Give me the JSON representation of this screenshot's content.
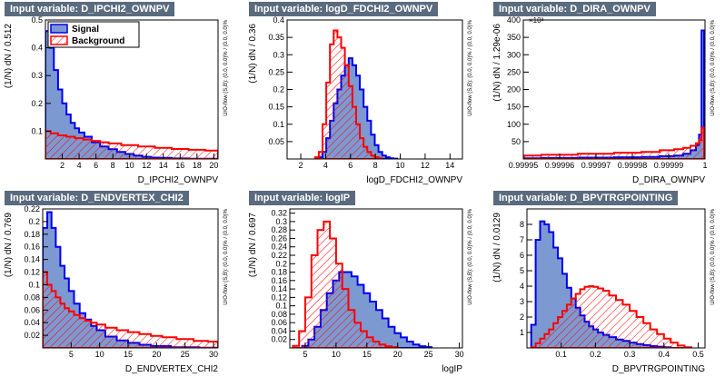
{
  "colors": {
    "signal_fill": "#7d99d1",
    "signal_line": "#0000ee",
    "background_line": "#ff0000",
    "title_bg": "#5b6b7f"
  },
  "legend": {
    "signal": "Signal",
    "background": "Background"
  },
  "overflow_note": "U/O-flow (S,B): (0.0, 0.0)% / (0.0, 0.0)%",
  "chart_data": [
    {
      "type": "histogram",
      "title": "Input variable: D_IPCHI2_OWNPV",
      "xlabel": "D_IPCHI2_OWNPV",
      "ylabel": "(1/N) dN / 0.512",
      "xlim": [
        0,
        20.5
      ],
      "ylim": [
        0,
        0.5
      ],
      "xticks": [
        2,
        4,
        6,
        8,
        10,
        12,
        14,
        16,
        18,
        20
      ],
      "yticks": [
        0.1,
        0.2,
        0.3,
        0.4,
        0.5
      ],
      "ytick_labels": [
        "0.1",
        "0.2",
        "0.3",
        "0.4",
        "0.5"
      ],
      "series": [
        {
          "name": "Signal",
          "x": [
            0.25,
            0.75,
            1.25,
            1.75,
            2.25,
            2.75,
            3.25,
            3.75,
            4.25,
            5,
            6,
            7,
            8,
            9,
            10,
            11,
            12,
            13,
            14,
            16,
            18,
            20
          ],
          "values": [
            0.46,
            0.4,
            0.32,
            0.25,
            0.2,
            0.16,
            0.13,
            0.11,
            0.095,
            0.08,
            0.06,
            0.045,
            0.035,
            0.025,
            0.018,
            0.012,
            0.008,
            0.005,
            0.004,
            0.002,
            0.001,
            0.0005
          ]
        },
        {
          "name": "Background",
          "x": [
            0.25,
            1,
            2,
            3,
            4,
            5,
            6,
            7,
            8,
            10,
            12,
            14,
            16,
            18,
            20
          ],
          "values": [
            0.1,
            0.092,
            0.085,
            0.08,
            0.075,
            0.07,
            0.065,
            0.06,
            0.056,
            0.05,
            0.045,
            0.04,
            0.036,
            0.033,
            0.03
          ]
        }
      ]
    },
    {
      "type": "histogram",
      "title": "Input variable: logD_FDCHI2_OWNPV",
      "xlabel": "logD_FDCHI2_OWNPV",
      "ylabel": "(1/N) dN / 0.36",
      "xlim": [
        0.9,
        15
      ],
      "ylim": [
        0,
        0.4
      ],
      "xticks": [
        2,
        4,
        6,
        8,
        10,
        12,
        14
      ],
      "yticks": [
        0.05,
        0.1,
        0.15,
        0.2,
        0.25,
        0.3,
        0.35,
        0.4
      ],
      "ytick_labels": [
        "0.05",
        "0.1",
        "0.15",
        "0.2",
        "0.25",
        "0.3",
        "0.35",
        "0.4"
      ],
      "series": [
        {
          "name": "Signal",
          "x": [
            3.6,
            3.9,
            4.2,
            4.5,
            4.8,
            5.1,
            5.4,
            5.7,
            6,
            6.3,
            6.6,
            6.9,
            7.2,
            7.5,
            7.8,
            8.1,
            8.4,
            8.7,
            9,
            9.3,
            9.6
          ],
          "values": [
            0.005,
            0.02,
            0.06,
            0.11,
            0.16,
            0.2,
            0.24,
            0.27,
            0.29,
            0.27,
            0.24,
            0.2,
            0.15,
            0.11,
            0.07,
            0.04,
            0.02,
            0.01,
            0.005,
            0.002,
            0.001
          ]
        },
        {
          "name": "Background",
          "x": [
            3.3,
            3.6,
            3.9,
            4.2,
            4.5,
            4.8,
            5.1,
            5.4,
            5.7,
            6,
            6.3,
            6.6,
            6.9,
            7.2,
            7.5,
            7.8,
            8.1,
            8.4
          ],
          "values": [
            0.005,
            0.02,
            0.1,
            0.22,
            0.33,
            0.37,
            0.35,
            0.32,
            0.27,
            0.21,
            0.15,
            0.1,
            0.06,
            0.035,
            0.02,
            0.01,
            0.005,
            0.002
          ]
        }
      ]
    },
    {
      "type": "histogram",
      "title": "Input variable: D_DIRA_OWNPV",
      "xlabel": "D_DIRA_OWNPV",
      "ylabel": "(1/N) dN / 1.29e-06",
      "y_exponent": "×10³",
      "xlim": [
        0.99995,
        1.0
      ],
      "ylim": [
        0,
        400
      ],
      "xticks": [
        0.99995,
        0.99996,
        0.99997,
        0.99998,
        0.99999,
        1
      ],
      "xtick_labels": [
        "0.99995",
        "0.99996",
        "0.99997",
        "0.99998",
        "0.99999",
        "1"
      ],
      "yticks": [
        50,
        100,
        150,
        200,
        250,
        300,
        350,
        400
      ],
      "ytick_labels": [
        "50",
        "100",
        "150",
        "200",
        "250",
        "300",
        "350",
        "400"
      ],
      "series": [
        {
          "name": "Signal",
          "x": [
            0.99995,
            0.99996,
            0.99997,
            0.99998,
            0.999985,
            0.99999,
            0.999993,
            0.999995,
            0.999997,
            0.999998,
            0.9999987,
            0.9999994
          ],
          "values": [
            2,
            3,
            4,
            5,
            6,
            8,
            10,
            15,
            25,
            40,
            70,
            370
          ]
        },
        {
          "name": "Background",
          "x": [
            0.99995,
            0.99996,
            0.99997,
            0.99998,
            0.999985,
            0.99999,
            0.999993,
            0.999995,
            0.999997,
            0.999998,
            0.9999987,
            0.9999994
          ],
          "values": [
            10,
            12,
            15,
            18,
            20,
            25,
            28,
            32,
            38,
            45,
            55,
            90
          ]
        }
      ]
    },
    {
      "type": "histogram",
      "title": "Input variable: D_ENDVERTEX_CHI2",
      "xlabel": "D_ENDVERTEX_CHI2",
      "ylabel": "(1/N) dN / 0.769",
      "xlim": [
        0,
        30.8
      ],
      "ylim": [
        0,
        0.22
      ],
      "xticks": [
        5,
        10,
        15,
        20,
        25,
        30
      ],
      "yticks": [
        0.02,
        0.04,
        0.06,
        0.08,
        0.1,
        0.12,
        0.14,
        0.16,
        0.18,
        0.2,
        0.22
      ],
      "ytick_labels": [
        "0.02",
        "0.04",
        "0.06",
        "0.08",
        "0.1",
        "0.12",
        "0.14",
        "0.16",
        "0.18",
        "0.2",
        "0.22"
      ],
      "series": [
        {
          "name": "Signal",
          "x": [
            0.4,
            1.2,
            1.9,
            2.7,
            3.5,
            4.2,
            5,
            6,
            7,
            8,
            9,
            10,
            12,
            14,
            16,
            18,
            20,
            25,
            30
          ],
          "values": [
            0.19,
            0.215,
            0.19,
            0.16,
            0.13,
            0.11,
            0.09,
            0.07,
            0.055,
            0.045,
            0.035,
            0.028,
            0.018,
            0.012,
            0.008,
            0.005,
            0.003,
            0.001,
            0.0005
          ]
        },
        {
          "name": "Background",
          "x": [
            0.4,
            1.2,
            1.9,
            2.7,
            3.5,
            4.2,
            5,
            6,
            7,
            8,
            9,
            10,
            12,
            14,
            16,
            18,
            20,
            22,
            25,
            28,
            30
          ],
          "values": [
            0.12,
            0.1,
            0.09,
            0.08,
            0.07,
            0.063,
            0.058,
            0.052,
            0.047,
            0.043,
            0.04,
            0.037,
            0.032,
            0.028,
            0.025,
            0.022,
            0.019,
            0.017,
            0.014,
            0.011,
            0.01
          ]
        }
      ]
    },
    {
      "type": "histogram",
      "title": "Input variable: logIP",
      "xlabel": "logIP",
      "ylabel": "(1/N) dN / 0.697",
      "xlim": [
        2.5,
        30.5
      ],
      "ylim": [
        0,
        0.33
      ],
      "xticks": [
        5,
        10,
        15,
        20,
        25,
        30
      ],
      "yticks": [
        0.02,
        0.04,
        0.06,
        0.08,
        0.1,
        0.12,
        0.14,
        0.16,
        0.18,
        0.2,
        0.22,
        0.24,
        0.26,
        0.28,
        0.3,
        0.32
      ],
      "ytick_labels": [
        "0.02",
        "0.04",
        "0.06",
        "0.08",
        "0.1",
        "0.12",
        "0.14",
        "0.16",
        "0.18",
        "0.2",
        "0.22",
        "0.24",
        "0.26",
        "0.28",
        "0.3",
        "0.32"
      ],
      "series": [
        {
          "name": "Signal",
          "x": [
            5,
            6,
            7,
            8,
            9,
            10,
            11,
            12,
            13,
            14,
            15,
            16,
            17,
            18,
            19,
            20,
            21,
            22,
            23,
            24,
            25
          ],
          "values": [
            0.005,
            0.02,
            0.05,
            0.09,
            0.13,
            0.16,
            0.18,
            0.18,
            0.17,
            0.15,
            0.13,
            0.11,
            0.09,
            0.07,
            0.05,
            0.035,
            0.025,
            0.015,
            0.008,
            0.004,
            0.002
          ]
        },
        {
          "name": "Background",
          "x": [
            3.5,
            4.5,
            5.5,
            6.5,
            7.5,
            8.5,
            9.5,
            10.5,
            11.5,
            12.5,
            13.5,
            14.5,
            15.5,
            16.5,
            17.5,
            18.5,
            19.5
          ],
          "values": [
            0.005,
            0.04,
            0.12,
            0.22,
            0.28,
            0.3,
            0.26,
            0.2,
            0.14,
            0.09,
            0.06,
            0.04,
            0.025,
            0.015,
            0.008,
            0.004,
            0.002
          ]
        }
      ]
    },
    {
      "type": "histogram",
      "title": "Input variable: D_BPVTRGPOINTING",
      "xlabel": "D_BPVTRGPOINTING",
      "ylabel": "(1/N) dN / 0.0129",
      "xlim": [
        0,
        0.52
      ],
      "ylim": [
        0,
        9
      ],
      "xticks": [
        0.1,
        0.2,
        0.3,
        0.4,
        0.5
      ],
      "yticks": [
        1,
        2,
        3,
        4,
        5,
        6,
        7,
        8
      ],
      "ytick_labels": [
        "1",
        "2",
        "3",
        "4",
        "5",
        "6",
        "7",
        "8"
      ],
      "series": [
        {
          "name": "Signal",
          "x": [
            0.019,
            0.032,
            0.045,
            0.058,
            0.071,
            0.084,
            0.097,
            0.11,
            0.123,
            0.136,
            0.149,
            0.162,
            0.175,
            0.188,
            0.2,
            0.215,
            0.23,
            0.25,
            0.27,
            0.29,
            0.31,
            0.33,
            0.35,
            0.37,
            0.39,
            0.41
          ],
          "values": [
            1.5,
            7,
            8.2,
            8.0,
            7.5,
            6.5,
            5.8,
            4.8,
            3.9,
            3.2,
            2.6,
            2.1,
            1.7,
            1.4,
            1.2,
            1.0,
            0.85,
            0.7,
            0.55,
            0.45,
            0.35,
            0.25,
            0.18,
            0.12,
            0.08,
            0.05
          ]
        },
        {
          "name": "Background",
          "x": [
            0.019,
            0.032,
            0.045,
            0.058,
            0.071,
            0.084,
            0.097,
            0.11,
            0.123,
            0.136,
            0.149,
            0.162,
            0.175,
            0.188,
            0.2,
            0.215,
            0.23,
            0.25,
            0.27,
            0.29,
            0.31,
            0.33,
            0.35,
            0.37,
            0.39,
            0.41,
            0.43,
            0.45,
            0.47
          ],
          "values": [
            0.05,
            0.3,
            0.6,
            0.9,
            1.2,
            1.6,
            2.0,
            2.4,
            2.8,
            3.2,
            3.5,
            3.8,
            3.95,
            4.0,
            3.95,
            3.85,
            3.7,
            3.4,
            3.1,
            2.8,
            2.4,
            2.0,
            1.6,
            1.2,
            0.9,
            0.6,
            0.35,
            0.15,
            0.05
          ]
        }
      ]
    }
  ]
}
